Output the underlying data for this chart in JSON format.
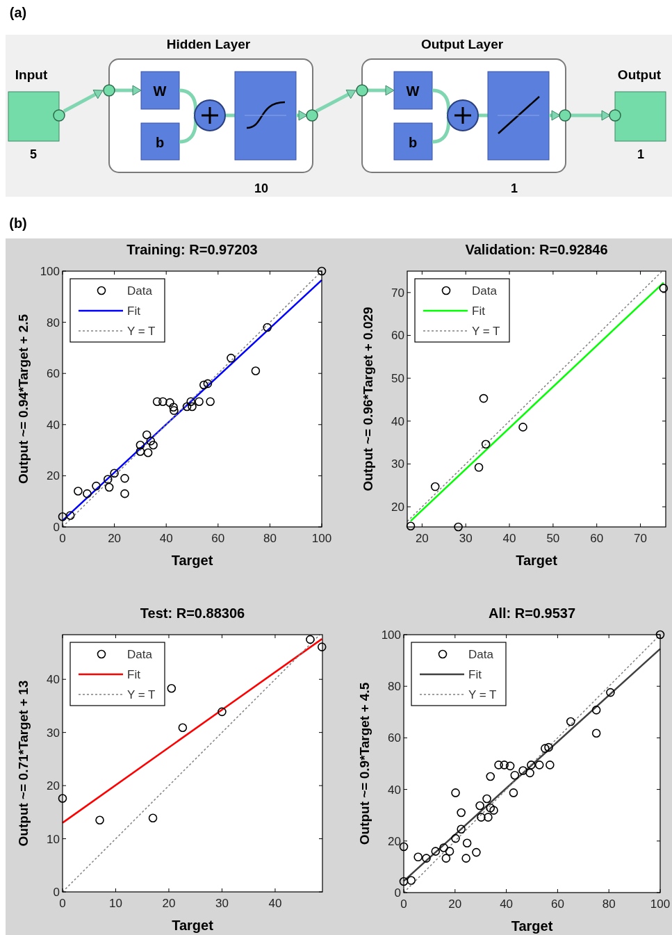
{
  "chart_data": [
    {
      "type": "other",
      "annotations": [
        "(a)",
        "Input",
        "5",
        "Hidden Layer",
        "W",
        "b",
        "10",
        "Output Layer",
        "W",
        "b",
        "1",
        "Output",
        "1",
        "(b)"
      ]
    },
    {
      "type": "scatter",
      "title": "Training: R=0.97203",
      "xlabel": "Target",
      "ylabel": "Output ~= 0.94*Target + 2.5",
      "xlim": [
        0,
        100
      ],
      "ylim": [
        0,
        100
      ],
      "xticks": [
        0,
        20,
        40,
        60,
        80,
        100
      ],
      "yticks": [
        0,
        20,
        40,
        60,
        80,
        100
      ],
      "legend": "top left",
      "series": [
        {
          "name": "Data",
          "type": "scatter",
          "marker": "circle",
          "color": "#000000",
          "x": [
            0,
            3,
            6,
            9.5,
            13,
            17.5,
            18,
            20,
            24,
            24,
            30,
            30,
            32.5,
            33,
            34,
            35,
            36.5,
            38.7,
            41.4,
            42.8,
            43,
            48,
            49.5,
            50,
            52.7,
            54.5,
            56,
            57,
            65,
            74.5,
            79,
            100
          ],
          "values": [
            4,
            4.5,
            14,
            13,
            16,
            18.6,
            15.5,
            21,
            19,
            13,
            32,
            29.5,
            36,
            29,
            33.6,
            32,
            49,
            49,
            48.6,
            46.8,
            45.5,
            47,
            49,
            47,
            49,
            55.5,
            56,
            49,
            66,
            61,
            78,
            100
          ]
        },
        {
          "name": "Fit",
          "type": "line",
          "marker": "none",
          "color": "#0000ff",
          "line_style": "solid",
          "x": [
            0,
            100
          ],
          "values": [
            2.5,
            96.5
          ]
        },
        {
          "name": "Y = T",
          "type": "line",
          "marker": "none",
          "color": "#808080",
          "line_style": "dotted",
          "x": [
            0,
            100
          ],
          "values": [
            0,
            100
          ]
        }
      ]
    },
    {
      "type": "scatter",
      "title": "Validation: R=0.92846",
      "xlabel": "Target",
      "ylabel": "Output ~= 0.96*Target + 0.029",
      "xlim": [
        16.6,
        75.8
      ],
      "ylim": [
        15.3,
        75
      ],
      "xticks": [
        20,
        30,
        40,
        50,
        60,
        70
      ],
      "yticks": [
        20,
        30,
        40,
        50,
        60,
        70
      ],
      "legend": "top left",
      "series": [
        {
          "name": "Data",
          "type": "scatter",
          "marker": "circle",
          "color": "#000000",
          "x": [
            17.4,
            23,
            28.3,
            33,
            34.1,
            34.6,
            43.1,
            75.3
          ],
          "values": [
            15.5,
            24.7,
            15.3,
            29.2,
            45.3,
            34.6,
            38.6,
            71
          ]
        },
        {
          "name": "Fit",
          "type": "line",
          "marker": "none",
          "color": "#00ff00",
          "line_style": "solid",
          "x": [
            17.4,
            75.3
          ],
          "values": [
            16.7,
            72.3
          ]
        },
        {
          "name": "Y = T",
          "type": "line",
          "marker": "none",
          "color": "#808080",
          "line_style": "dotted",
          "x": [
            16.6,
            75
          ],
          "values": [
            16.6,
            75
          ]
        }
      ]
    },
    {
      "type": "scatter",
      "title": "Test: R=0.88306",
      "xlabel": "Target",
      "ylabel": "Output ~= 0.71*Target + 13",
      "xlim": [
        0,
        48.9
      ],
      "ylim": [
        0,
        48.4
      ],
      "xticks": [
        0,
        10,
        20,
        30,
        40
      ],
      "yticks": [
        0,
        10,
        20,
        30,
        40
      ],
      "legend": "top left",
      "series": [
        {
          "name": "Data",
          "type": "scatter",
          "marker": "circle",
          "color": "#000000",
          "x": [
            0,
            7,
            17,
            20.5,
            22.6,
            30,
            46.6,
            48.8
          ],
          "values": [
            17.6,
            13.5,
            13.9,
            38.3,
            30.9,
            33.9,
            47.5,
            46.1
          ]
        },
        {
          "name": "Fit",
          "type": "line",
          "marker": "none",
          "color": "#ff0000",
          "line_style": "solid",
          "x": [
            0,
            48.8
          ],
          "values": [
            13,
            47.6
          ]
        },
        {
          "name": "Y = T",
          "type": "line",
          "marker": "none",
          "color": "#808080",
          "line_style": "dotted",
          "x": [
            0,
            48.4
          ],
          "values": [
            0,
            48.4
          ]
        }
      ]
    },
    {
      "type": "scatter",
      "title": "All: R=0.9537",
      "xlabel": "Target",
      "ylabel": "Output ~= 0.9*Target + 4.5",
      "xlim": [
        0,
        100
      ],
      "ylim": [
        0,
        100
      ],
      "xticks": [
        0,
        20,
        40,
        60,
        80,
        100
      ],
      "yticks": [
        0,
        20,
        40,
        60,
        80,
        100
      ],
      "legend": "top left",
      "series": [
        {
          "name": "Data",
          "type": "scatter",
          "marker": "circle",
          "color": "#000000",
          "x": [
            0,
            0,
            2.9,
            5.6,
            8.8,
            12.4,
            15.6,
            16.5,
            17.9,
            20.2,
            20.2,
            22.4,
            22.4,
            24.7,
            24.3,
            28.3,
            29.7,
            30.2,
            32.4,
            32.9,
            33.8,
            33.8,
            35.1,
            37,
            39.2,
            41.5,
            42.8,
            43.3,
            46.5,
            49.2,
            49.7,
            52.9,
            55.1,
            56.5,
            57,
            65.1,
            75.1,
            75.1,
            80.6,
            100
          ],
          "values": [
            17.8,
            4.3,
            4.7,
            13.8,
            13.3,
            16,
            17.4,
            13.3,
            16,
            21,
            38.7,
            31,
            24.6,
            19.2,
            13.3,
            15.6,
            33.7,
            29.2,
            36.4,
            29.2,
            32.8,
            45,
            31.9,
            49.5,
            49.5,
            49.1,
            38.7,
            45.5,
            47.3,
            46.4,
            49.5,
            49.5,
            55.9,
            56.3,
            49.5,
            66.3,
            70.8,
            61.8,
            77.6,
            100
          ]
        },
        {
          "name": "Fit",
          "type": "line",
          "marker": "none",
          "color": "#404040",
          "line_style": "solid",
          "x": [
            0,
            100
          ],
          "values": [
            4.5,
            94.5
          ]
        },
        {
          "name": "Y = T",
          "type": "line",
          "marker": "none",
          "color": "#808080",
          "line_style": "dotted",
          "x": [
            0,
            100
          ],
          "values": [
            0,
            100
          ]
        }
      ]
    }
  ]
}
